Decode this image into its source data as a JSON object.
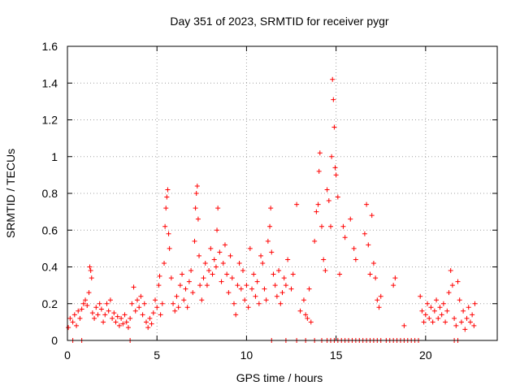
{
  "chart_data": {
    "type": "scatter",
    "title": "Day 351 of 2023, SRMTID for receiver pygr",
    "xlabel": "GPS time / hours",
    "ylabel": "SRMTID / TECUs",
    "xlim": [
      0,
      24
    ],
    "ylim": [
      0,
      1.6
    ],
    "xticks": [
      "0",
      "5",
      "10",
      "15",
      "20"
    ],
    "xtick_values": [
      0,
      5,
      10,
      15,
      20
    ],
    "yticks": [
      "0",
      "0.2",
      "0.4",
      "0.6",
      "0.8",
      "1",
      "1.2",
      "1.4",
      "1.6"
    ],
    "ytick_values": [
      0,
      0.2,
      0.4,
      0.6,
      0.8,
      1.0,
      1.2,
      1.4,
      1.6
    ],
    "grid": true,
    "marker": "+",
    "color": "#ff0000",
    "series": [
      {
        "name": "SRMTID",
        "points": [
          [
            0.05,
            0.07
          ],
          [
            0.15,
            0.12
          ],
          [
            0.3,
            0.1
          ],
          [
            0.4,
            0.14
          ],
          [
            0.5,
            0.08
          ],
          [
            0.6,
            0.16
          ],
          [
            0.7,
            0.12
          ],
          [
            0.8,
            0.17
          ],
          [
            0.9,
            0.2
          ],
          [
            1.0,
            0.22
          ],
          [
            1.1,
            0.19
          ],
          [
            1.2,
            0.26
          ],
          [
            1.25,
            0.4
          ],
          [
            1.3,
            0.38
          ],
          [
            1.35,
            0.34
          ],
          [
            1.4,
            0.15
          ],
          [
            1.5,
            0.12
          ],
          [
            1.6,
            0.18
          ],
          [
            1.7,
            0.14
          ],
          [
            1.8,
            0.2
          ],
          [
            1.9,
            0.17
          ],
          [
            2.0,
            0.1
          ],
          [
            2.1,
            0.14
          ],
          [
            2.2,
            0.2
          ],
          [
            2.3,
            0.16
          ],
          [
            2.4,
            0.22
          ],
          [
            2.5,
            0.12
          ],
          [
            2.6,
            0.15
          ],
          [
            2.7,
            0.1
          ],
          [
            2.8,
            0.13
          ],
          [
            2.9,
            0.08
          ],
          [
            3.0,
            0.12
          ],
          [
            3.1,
            0.09
          ],
          [
            3.2,
            0.14
          ],
          [
            3.3,
            0.1
          ],
          [
            3.4,
            0.07
          ],
          [
            3.5,
            0.12
          ],
          [
            3.6,
            0.2
          ],
          [
            3.7,
            0.29
          ],
          [
            3.8,
            0.16
          ],
          [
            3.9,
            0.22
          ],
          [
            4.0,
            0.18
          ],
          [
            4.1,
            0.24
          ],
          [
            4.2,
            0.14
          ],
          [
            4.3,
            0.2
          ],
          [
            4.4,
            0.1
          ],
          [
            4.5,
            0.07
          ],
          [
            4.6,
            0.12
          ],
          [
            4.7,
            0.09
          ],
          [
            4.8,
            0.15
          ],
          [
            4.9,
            0.22
          ],
          [
            5.0,
            0.18
          ],
          [
            5.1,
            0.3
          ],
          [
            5.15,
            0.35
          ],
          [
            5.2,
            0.14
          ],
          [
            5.3,
            0.2
          ],
          [
            5.4,
            0.42
          ],
          [
            5.45,
            0.62
          ],
          [
            5.5,
            0.72
          ],
          [
            5.55,
            0.78
          ],
          [
            5.6,
            0.82
          ],
          [
            5.65,
            0.58
          ],
          [
            5.7,
            0.5
          ],
          [
            5.8,
            0.34
          ],
          [
            5.9,
            0.2
          ],
          [
            6.0,
            0.16
          ],
          [
            6.1,
            0.24
          ],
          [
            6.2,
            0.18
          ],
          [
            6.3,
            0.3
          ],
          [
            6.4,
            0.36
          ],
          [
            6.5,
            0.22
          ],
          [
            6.6,
            0.28
          ],
          [
            6.7,
            0.18
          ],
          [
            6.8,
            0.32
          ],
          [
            6.9,
            0.38
          ],
          [
            7.0,
            0.26
          ],
          [
            7.1,
            0.54
          ],
          [
            7.15,
            0.72
          ],
          [
            7.2,
            0.8
          ],
          [
            7.25,
            0.84
          ],
          [
            7.3,
            0.66
          ],
          [
            7.35,
            0.46
          ],
          [
            7.4,
            0.3
          ],
          [
            7.5,
            0.22
          ],
          [
            7.6,
            0.34
          ],
          [
            7.7,
            0.42
          ],
          [
            7.8,
            0.3
          ],
          [
            7.9,
            0.38
          ],
          [
            8.0,
            0.5
          ],
          [
            8.1,
            0.36
          ],
          [
            8.2,
            0.44
          ],
          [
            8.3,
            0.4
          ],
          [
            8.35,
            0.6
          ],
          [
            8.4,
            0.72
          ],
          [
            8.5,
            0.48
          ],
          [
            8.6,
            0.32
          ],
          [
            8.7,
            0.42
          ],
          [
            8.8,
            0.52
          ],
          [
            8.9,
            0.36
          ],
          [
            9.0,
            0.26
          ],
          [
            9.1,
            0.46
          ],
          [
            9.2,
            0.34
          ],
          [
            9.3,
            0.2
          ],
          [
            9.4,
            0.14
          ],
          [
            9.5,
            0.3
          ],
          [
            9.6,
            0.42
          ],
          [
            9.7,
            0.28
          ],
          [
            9.8,
            0.38
          ],
          [
            9.9,
            0.22
          ],
          [
            10.0,
            0.3
          ],
          [
            10.1,
            0.18
          ],
          [
            10.2,
            0.5
          ],
          [
            10.3,
            0.28
          ],
          [
            10.4,
            0.36
          ],
          [
            10.5,
            0.24
          ],
          [
            10.6,
            0.32
          ],
          [
            10.7,
            0.2
          ],
          [
            10.8,
            0.46
          ],
          [
            10.9,
            0.42
          ],
          [
            11.0,
            0.28
          ],
          [
            11.1,
            0.22
          ],
          [
            11.2,
            0.54
          ],
          [
            11.3,
            0.62
          ],
          [
            11.35,
            0.72
          ],
          [
            11.4,
            0.48
          ],
          [
            11.5,
            0.36
          ],
          [
            11.6,
            0.3
          ],
          [
            11.7,
            0.24
          ],
          [
            11.8,
            0.38
          ],
          [
            11.9,
            0.2
          ],
          [
            12.0,
            0.26
          ],
          [
            12.1,
            0.34
          ],
          [
            12.2,
            0.3
          ],
          [
            12.3,
            0.44
          ],
          [
            12.5,
            0.28
          ],
          [
            12.6,
            0.36
          ],
          [
            12.8,
            0.74
          ],
          [
            13.0,
            0.16
          ],
          [
            13.2,
            0.22
          ],
          [
            13.3,
            0.14
          ],
          [
            13.4,
            0.12
          ],
          [
            13.5,
            0.28
          ],
          [
            13.6,
            0.1
          ],
          [
            13.8,
            0.54
          ],
          [
            13.9,
            0.7
          ],
          [
            14.0,
            0.74
          ],
          [
            14.05,
            0.92
          ],
          [
            14.1,
            1.02
          ],
          [
            14.2,
            0.62
          ],
          [
            14.3,
            0.44
          ],
          [
            14.4,
            0.38
          ],
          [
            14.5,
            0.82
          ],
          [
            14.6,
            0.76
          ],
          [
            14.7,
            0.62
          ],
          [
            14.75,
            1.0
          ],
          [
            14.8,
            1.42
          ],
          [
            14.85,
            1.31
          ],
          [
            14.9,
            1.16
          ],
          [
            14.95,
            0.94
          ],
          [
            15.0,
            0.9
          ],
          [
            15.1,
            0.78
          ],
          [
            15.2,
            0.36
          ],
          [
            15.4,
            0.62
          ],
          [
            15.5,
            0.56
          ],
          [
            15.8,
            0.66
          ],
          [
            16.0,
            0.5
          ],
          [
            16.1,
            0.44
          ],
          [
            16.6,
            0.58
          ],
          [
            16.7,
            0.74
          ],
          [
            16.8,
            0.52
          ],
          [
            16.9,
            0.36
          ],
          [
            17.0,
            0.68
          ],
          [
            17.1,
            0.42
          ],
          [
            17.2,
            0.34
          ],
          [
            17.3,
            0.22
          ],
          [
            17.4,
            0.18
          ],
          [
            17.5,
            0.24
          ],
          [
            18.2,
            0.3
          ],
          [
            18.3,
            0.34
          ],
          [
            18.8,
            0.08
          ],
          [
            19.7,
            0.24
          ],
          [
            19.8,
            0.16
          ],
          [
            19.9,
            0.1
          ],
          [
            20.0,
            0.14
          ],
          [
            20.1,
            0.2
          ],
          [
            20.2,
            0.12
          ],
          [
            20.3,
            0.18
          ],
          [
            20.4,
            0.1
          ],
          [
            20.5,
            0.16
          ],
          [
            20.6,
            0.22
          ],
          [
            20.7,
            0.12
          ],
          [
            20.8,
            0.18
          ],
          [
            20.9,
            0.14
          ],
          [
            21.0,
            0.2
          ],
          [
            21.1,
            0.1
          ],
          [
            21.2,
            0.16
          ],
          [
            21.3,
            0.26
          ],
          [
            21.4,
            0.38
          ],
          [
            21.5,
            0.3
          ],
          [
            21.6,
            0.12
          ],
          [
            21.7,
            0.08
          ],
          [
            21.8,
            0.32
          ],
          [
            21.9,
            0.22
          ],
          [
            22.0,
            0.1
          ],
          [
            22.1,
            0.16
          ],
          [
            22.2,
            0.06
          ],
          [
            22.3,
            0.12
          ],
          [
            22.4,
            0.18
          ],
          [
            22.5,
            0.1
          ],
          [
            22.6,
            0.14
          ],
          [
            22.7,
            0.08
          ],
          [
            22.75,
            0.2
          ],
          [
            0.3,
            0.0
          ],
          [
            0.8,
            0.0
          ],
          [
            3.5,
            0.0
          ],
          [
            11.4,
            0.0
          ],
          [
            12.2,
            0.0
          ],
          [
            12.8,
            0.0
          ],
          [
            13.3,
            0.0
          ],
          [
            13.8,
            0.0
          ],
          [
            14.2,
            0.0
          ],
          [
            14.5,
            0.0
          ],
          [
            14.7,
            0.0
          ],
          [
            14.9,
            0.0
          ],
          [
            15.1,
            0.0
          ],
          [
            15.3,
            0.0
          ],
          [
            15.5,
            0.0
          ],
          [
            15.7,
            0.0
          ],
          [
            15.9,
            0.0
          ],
          [
            16.1,
            0.0
          ],
          [
            16.3,
            0.0
          ],
          [
            16.5,
            0.0
          ],
          [
            16.7,
            0.0
          ],
          [
            16.9,
            0.0
          ],
          [
            17.1,
            0.0
          ],
          [
            17.3,
            0.0
          ],
          [
            17.5,
            0.0
          ],
          [
            17.8,
            0.0
          ],
          [
            18.0,
            0.0
          ],
          [
            18.2,
            0.0
          ],
          [
            18.4,
            0.0
          ],
          [
            18.6,
            0.0
          ],
          [
            18.8,
            0.0
          ],
          [
            19.0,
            0.0
          ],
          [
            19.2,
            0.0
          ],
          [
            19.4,
            0.0
          ],
          [
            19.6,
            0.0
          ],
          [
            21.6,
            0.0
          ],
          [
            21.8,
            0.0
          ]
        ]
      }
    ]
  }
}
